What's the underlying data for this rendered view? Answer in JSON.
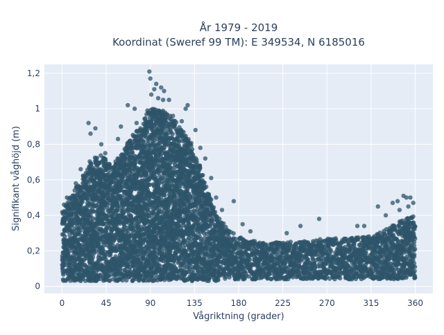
{
  "chart_data": {
    "type": "scatter",
    "title_line1": "År 1979 - 2019",
    "title_line2": "Koordinat (Sweref 99 TM): E 349534, N 6185016",
    "xlabel": "Vågriktning (grader)",
    "ylabel": "Signifikant våghöjd (m)",
    "xlim": [
      -18,
      378
    ],
    "ylim": [
      -0.04,
      1.25
    ],
    "x_ticks": [
      0,
      45,
      90,
      135,
      180,
      225,
      270,
      315,
      360
    ],
    "x_tick_labels": [
      "0",
      "45",
      "90",
      "135",
      "180",
      "225",
      "270",
      "315",
      "360"
    ],
    "y_ticks": [
      0,
      0.2,
      0.4,
      0.6,
      0.8,
      1.0,
      1.2
    ],
    "y_tick_labels": [
      "0",
      "0,2",
      "0,4",
      "0,6",
      "0,8",
      "1",
      "1,2"
    ],
    "marker_color": "#2e5469",
    "marker_opacity": 0.75,
    "grid": true,
    "legend": "none",
    "upper_envelope": [
      {
        "x": 0,
        "y": 0.42
      },
      {
        "x": 10,
        "y": 0.52
      },
      {
        "x": 20,
        "y": 0.62
      },
      {
        "x": 30,
        "y": 0.72
      },
      {
        "x": 40,
        "y": 0.74
      },
      {
        "x": 50,
        "y": 0.68
      },
      {
        "x": 60,
        "y": 0.74
      },
      {
        "x": 70,
        "y": 0.84
      },
      {
        "x": 80,
        "y": 0.9
      },
      {
        "x": 90,
        "y": 1.0
      },
      {
        "x": 100,
        "y": 1.0
      },
      {
        "x": 110,
        "y": 0.97
      },
      {
        "x": 120,
        "y": 0.9
      },
      {
        "x": 130,
        "y": 0.82
      },
      {
        "x": 140,
        "y": 0.68
      },
      {
        "x": 150,
        "y": 0.52
      },
      {
        "x": 160,
        "y": 0.4
      },
      {
        "x": 170,
        "y": 0.32
      },
      {
        "x": 180,
        "y": 0.28
      },
      {
        "x": 200,
        "y": 0.25
      },
      {
        "x": 225,
        "y": 0.25
      },
      {
        "x": 250,
        "y": 0.26
      },
      {
        "x": 270,
        "y": 0.27
      },
      {
        "x": 290,
        "y": 0.27
      },
      {
        "x": 310,
        "y": 0.28
      },
      {
        "x": 330,
        "y": 0.32
      },
      {
        "x": 345,
        "y": 0.37
      },
      {
        "x": 360,
        "y": 0.4
      }
    ],
    "outliers": [
      {
        "x": 89,
        "y": 1.21
      },
      {
        "x": 90,
        "y": 1.17
      },
      {
        "x": 96,
        "y": 1.14
      },
      {
        "x": 94,
        "y": 1.11
      },
      {
        "x": 101,
        "y": 1.12
      },
      {
        "x": 104,
        "y": 1.1
      },
      {
        "x": 91,
        "y": 1.08
      },
      {
        "x": 98,
        "y": 1.06
      },
      {
        "x": 103,
        "y": 1.05
      },
      {
        "x": 109,
        "y": 1.05
      },
      {
        "x": 128,
        "y": 1.02
      },
      {
        "x": 126,
        "y": 1.0
      },
      {
        "x": 67,
        "y": 1.02
      },
      {
        "x": 74,
        "y": 1.0
      },
      {
        "x": 87,
        "y": 0.99
      },
      {
        "x": 27,
        "y": 0.92
      },
      {
        "x": 34,
        "y": 0.89
      },
      {
        "x": 29,
        "y": 0.86
      },
      {
        "x": 60,
        "y": 0.9
      },
      {
        "x": 76,
        "y": 0.92
      },
      {
        "x": 57,
        "y": 0.83
      },
      {
        "x": 113,
        "y": 0.96
      },
      {
        "x": 122,
        "y": 0.93
      },
      {
        "x": 136,
        "y": 0.88
      },
      {
        "x": 141,
        "y": 0.78
      },
      {
        "x": 146,
        "y": 0.72
      },
      {
        "x": 152,
        "y": 0.61
      },
      {
        "x": 175,
        "y": 0.48
      },
      {
        "x": 163,
        "y": 0.43
      },
      {
        "x": 157,
        "y": 0.5
      },
      {
        "x": 44,
        "y": 0.75
      },
      {
        "x": 40,
        "y": 0.8
      },
      {
        "x": 5,
        "y": 0.5
      },
      {
        "x": 2,
        "y": 0.46
      },
      {
        "x": 14,
        "y": 0.58
      },
      {
        "x": 19,
        "y": 0.66
      },
      {
        "x": 184,
        "y": 0.35
      },
      {
        "x": 192,
        "y": 0.31
      },
      {
        "x": 229,
        "y": 0.3
      },
      {
        "x": 243,
        "y": 0.34
      },
      {
        "x": 262,
        "y": 0.38
      },
      {
        "x": 301,
        "y": 0.34
      },
      {
        "x": 308,
        "y": 0.34
      },
      {
        "x": 322,
        "y": 0.45
      },
      {
        "x": 330,
        "y": 0.4
      },
      {
        "x": 337,
        "y": 0.47
      },
      {
        "x": 342,
        "y": 0.48
      },
      {
        "x": 348,
        "y": 0.51
      },
      {
        "x": 351,
        "y": 0.5
      },
      {
        "x": 355,
        "y": 0.5
      },
      {
        "x": 358,
        "y": 0.47
      },
      {
        "x": 353,
        "y": 0.45
      },
      {
        "x": 344,
        "y": 0.43
      }
    ]
  }
}
